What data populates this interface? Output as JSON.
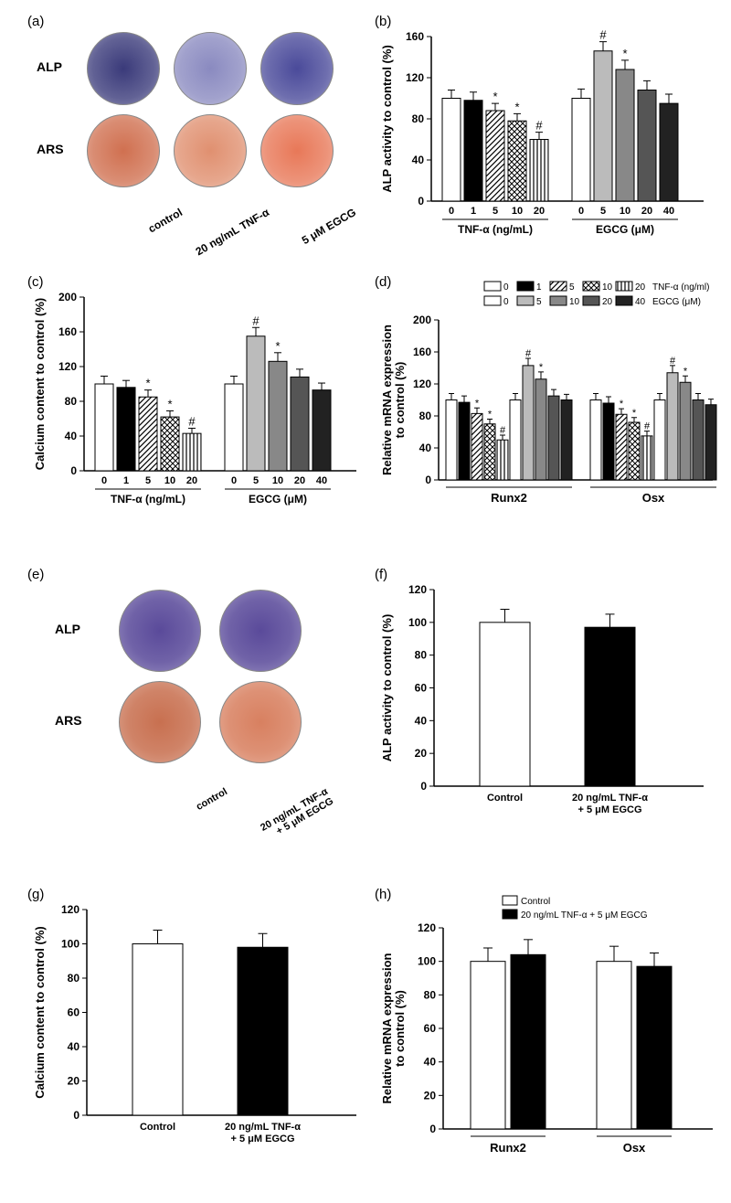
{
  "panels": {
    "a": {
      "label": "(a)",
      "rows": [
        "ALP",
        "ARS"
      ],
      "cols": [
        "control",
        "20 ng/mL TNF-α",
        "5 μM EGCG"
      ],
      "alp_colors": [
        "#3a3a7a",
        "#8a8ac0",
        "#4a4a9a"
      ],
      "ars_colors": [
        "#d07050",
        "#e09070",
        "#e87858"
      ]
    },
    "b": {
      "label": "(b)",
      "ylabel": "ALP activity to control (%)",
      "ylim": [
        0,
        160
      ],
      "ytick_step": 40,
      "groups": [
        {
          "name": "TNF-α (ng/mL)",
          "ticks": [
            "0",
            "1",
            "5",
            "10",
            "20"
          ],
          "values": [
            100,
            98,
            88,
            78,
            60
          ],
          "errors": [
            8,
            8,
            7,
            7,
            7
          ],
          "fills": [
            "#ffffff",
            "#000000",
            "diag",
            "cross",
            "vert"
          ],
          "sig": [
            "",
            "",
            "*",
            "*",
            "#"
          ]
        },
        {
          "name": "EGCG (μM)",
          "ticks": [
            "0",
            "5",
            "10",
            "20",
            "40"
          ],
          "values": [
            100,
            146,
            128,
            108,
            95
          ],
          "errors": [
            9,
            9,
            9,
            9,
            9
          ],
          "fills": [
            "#ffffff",
            "#bbbbbb",
            "#888888",
            "#555555",
            "#222222"
          ],
          "sig": [
            "",
            "#",
            "*",
            "",
            ""
          ]
        }
      ]
    },
    "c": {
      "label": "(c)",
      "ylabel": "Calcium content to control (%)",
      "ylim": [
        0,
        200
      ],
      "ytick_step": 40,
      "groups": [
        {
          "name": "TNF-α (ng/mL)",
          "ticks": [
            "0",
            "1",
            "5",
            "10",
            "20"
          ],
          "values": [
            100,
            96,
            85,
            62,
            43
          ],
          "errors": [
            9,
            8,
            8,
            7,
            6
          ],
          "fills": [
            "#ffffff",
            "#000000",
            "diag",
            "cross",
            "vert"
          ],
          "sig": [
            "",
            "",
            "*",
            "*",
            "#"
          ]
        },
        {
          "name": "EGCG (μM)",
          "ticks": [
            "0",
            "5",
            "10",
            "20",
            "40"
          ],
          "values": [
            100,
            155,
            126,
            108,
            93
          ],
          "errors": [
            9,
            10,
            10,
            9,
            8
          ],
          "fills": [
            "#ffffff",
            "#bbbbbb",
            "#888888",
            "#555555",
            "#222222"
          ],
          "sig": [
            "",
            "#",
            "*",
            "",
            ""
          ]
        }
      ]
    },
    "d": {
      "label": "(d)",
      "ylabel": "Relative mRNA expression\nto control (%)",
      "ylim": [
        0,
        200
      ],
      "ytick_step": 40,
      "legend_tnf": {
        "ticks": [
          "0",
          "1",
          "5",
          "10",
          "20"
        ],
        "label": "TNF-α (ng/ml)",
        "fills": [
          "#ffffff",
          "#000000",
          "diag",
          "cross",
          "vert"
        ]
      },
      "legend_egcg": {
        "ticks": [
          "0",
          "5",
          "10",
          "20",
          "40"
        ],
        "label": "EGCG (μM)",
        "fills": [
          "#ffffff",
          "#bbbbbb",
          "#888888",
          "#555555",
          "#222222"
        ]
      },
      "groups": [
        {
          "name": "Runx2",
          "values": [
            100,
            97,
            83,
            70,
            50,
            100,
            143,
            126,
            105,
            100
          ],
          "errors": [
            8,
            8,
            7,
            6,
            6,
            8,
            9,
            9,
            8,
            7
          ],
          "fills": [
            "#ffffff",
            "#000000",
            "diag",
            "cross",
            "vert",
            "#ffffff",
            "#bbbbbb",
            "#888888",
            "#555555",
            "#222222"
          ],
          "sig": [
            "",
            "",
            "*",
            "*",
            "#",
            "",
            "#",
            "*",
            "",
            ""
          ]
        },
        {
          "name": "Osx",
          "values": [
            100,
            96,
            82,
            72,
            55,
            100,
            134,
            122,
            100,
            94
          ],
          "errors": [
            8,
            8,
            7,
            6,
            6,
            8,
            9,
            8,
            8,
            7
          ],
          "fills": [
            "#ffffff",
            "#000000",
            "diag",
            "cross",
            "vert",
            "#ffffff",
            "#bbbbbb",
            "#888888",
            "#555555",
            "#222222"
          ],
          "sig": [
            "",
            "",
            "*",
            "*",
            "#",
            "",
            "#",
            "*",
            "",
            ""
          ]
        }
      ]
    },
    "e": {
      "label": "(e)",
      "rows": [
        "ALP",
        "ARS"
      ],
      "cols": [
        "control",
        "20 ng/mL TNF-α\n+ 5 μM EGCG"
      ],
      "alp_colors": [
        "#5a4a9a",
        "#5a4a9a"
      ],
      "ars_colors": [
        "#c87050",
        "#d88060"
      ]
    },
    "f": {
      "label": "(f)",
      "ylabel": "ALP activity to control (%)",
      "ylim": [
        0,
        120
      ],
      "ytick_step": 20,
      "ticks": [
        "Control",
        "20 ng/mL TNF-α\n+ 5 μM EGCG"
      ],
      "values": [
        100,
        97
      ],
      "errors": [
        8,
        8
      ],
      "fills": [
        "#ffffff",
        "#000000"
      ]
    },
    "g": {
      "label": "(g)",
      "ylabel": "Calcium content to control (%)",
      "ylim": [
        0,
        120
      ],
      "ytick_step": 20,
      "ticks": [
        "Control",
        "20 ng/mL TNF-α\n+ 5 μM EGCG"
      ],
      "values": [
        100,
        98
      ],
      "errors": [
        8,
        8
      ],
      "fills": [
        "#ffffff",
        "#000000"
      ]
    },
    "h": {
      "label": "(h)",
      "ylabel": "Relative mRNA expression\nto control (%)",
      "ylim": [
        0,
        120
      ],
      "ytick_step": 20,
      "legend": [
        "Control",
        "20 ng/mL TNF-α + 5 μM EGCG"
      ],
      "groups": [
        {
          "name": "Runx2",
          "values": [
            100,
            104
          ],
          "errors": [
            8,
            9
          ],
          "fills": [
            "#ffffff",
            "#000000"
          ]
        },
        {
          "name": "Osx",
          "values": [
            100,
            97
          ],
          "errors": [
            9,
            8
          ],
          "fills": [
            "#ffffff",
            "#000000"
          ]
        }
      ]
    }
  },
  "colors": {
    "axis": "#000000",
    "grid": "#ffffff",
    "bg": "#ffffff"
  }
}
